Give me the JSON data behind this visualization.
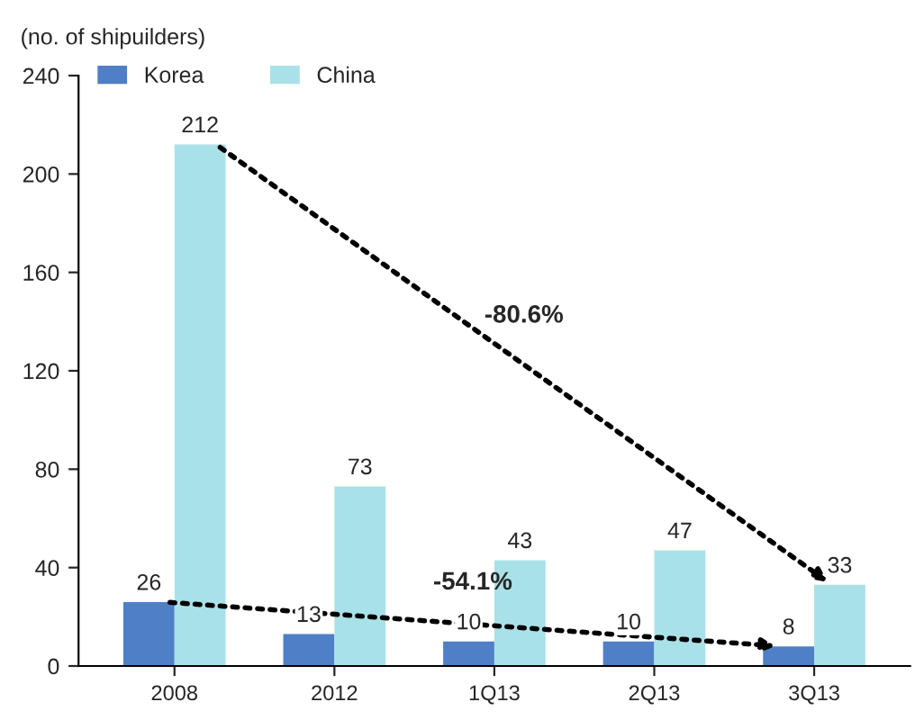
{
  "chart_data": {
    "type": "bar",
    "ylabel": "(no. of shipuilders)",
    "categories": [
      "2008",
      "2012",
      "1Q13",
      "2Q13",
      "3Q13"
    ],
    "series": [
      {
        "name": "Korea",
        "color": "#4f7fc6",
        "values": [
          26,
          13,
          10,
          10,
          8
        ]
      },
      {
        "name": "China",
        "color": "#a9e1e9",
        "values": [
          212,
          73,
          43,
          47,
          33
        ]
      }
    ],
    "ylim": [
      0,
      240
    ],
    "yticks": [
      0,
      40,
      80,
      120,
      160,
      200,
      240
    ],
    "data_labels": true,
    "legend": "top left",
    "grid": false,
    "annotations": [
      "-54.1%",
      "-80.6%"
    ]
  }
}
